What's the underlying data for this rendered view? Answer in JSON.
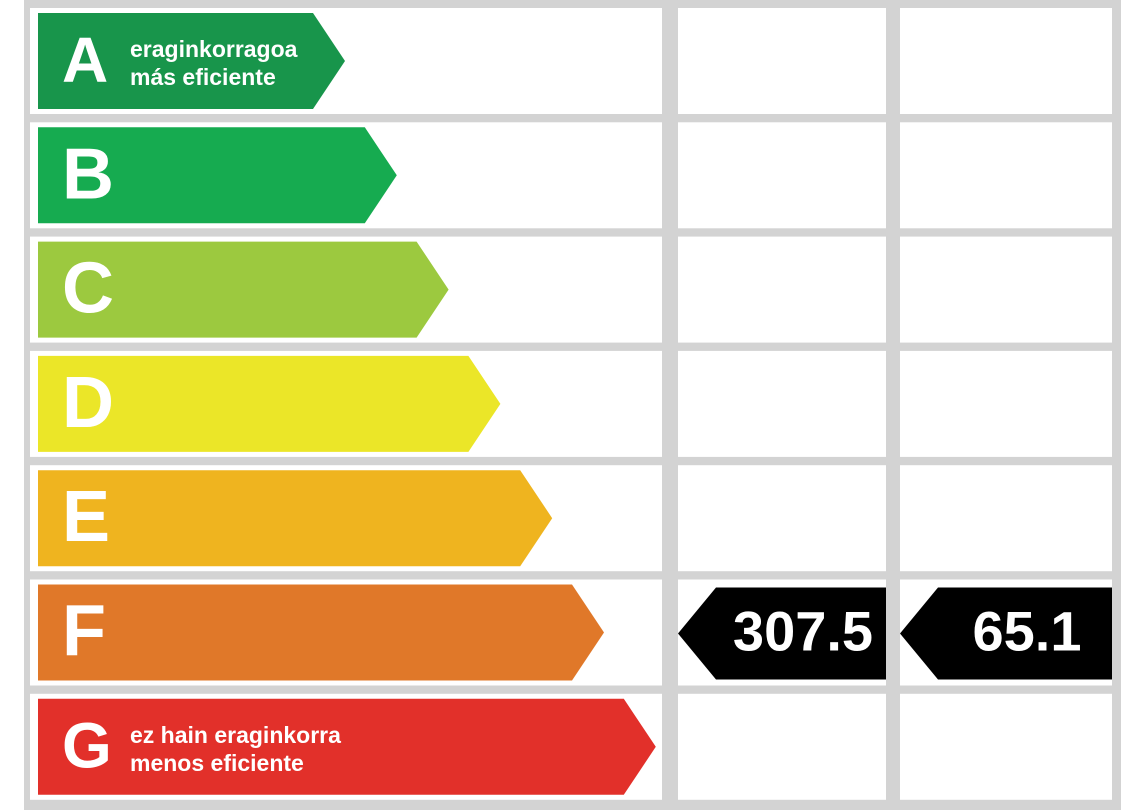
{
  "rows": [
    {
      "letter": "A",
      "lines": [
        "eraginkorragoa",
        "más eficiente"
      ],
      "color": "#18954b"
    },
    {
      "letter": "B",
      "color": "#16ab50"
    },
    {
      "letter": "C",
      "color": "#9cc93f"
    },
    {
      "letter": "D",
      "color": "#ebe628"
    },
    {
      "letter": "E",
      "color": "#efb41f"
    },
    {
      "letter": "F",
      "color": "#e07829",
      "consumption": 307.5,
      "emissions": 65.1
    },
    {
      "letter": "G",
      "lines": [
        "ez hain eraginkorra",
        "menos eficiente"
      ],
      "color": "#e2302a"
    }
  ]
}
